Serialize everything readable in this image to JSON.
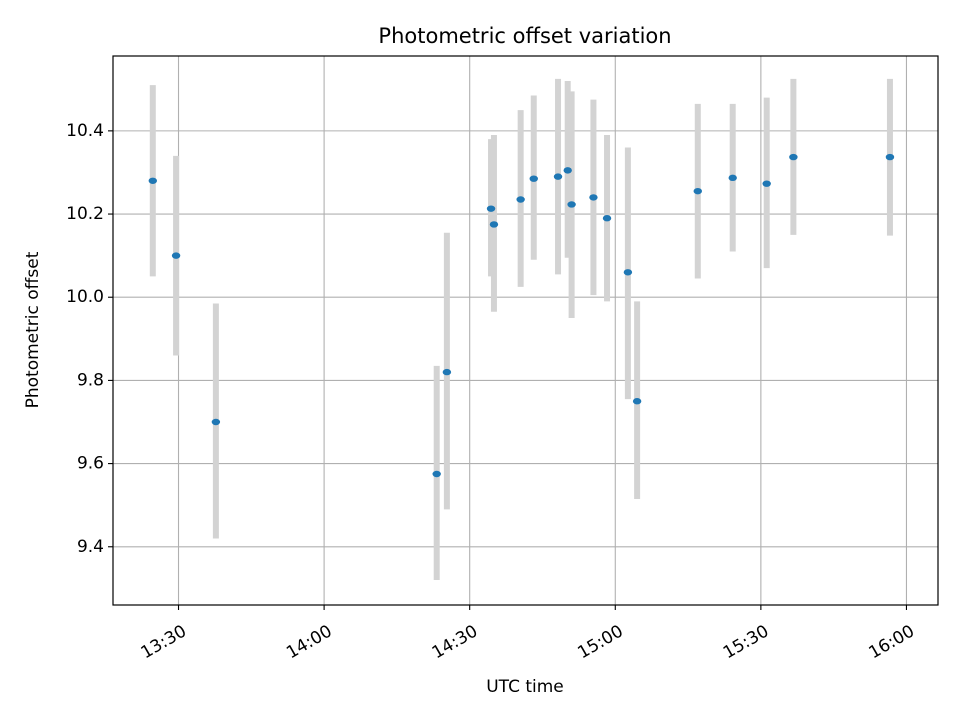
{
  "chart_data": {
    "type": "scatter",
    "title": "Photometric offset variation",
    "xlabel": "UTC time",
    "ylabel": "Photometric offset",
    "x_tick_labels": [
      "13:30",
      "14:00",
      "14:30",
      "15:00",
      "15:30",
      "16:00"
    ],
    "x_tick_minutes": [
      810,
      840,
      870,
      900,
      930,
      960
    ],
    "xlim_minutes": [
      796.5,
      966.5
    ],
    "y_tick_labels": [
      "9.4",
      "9.6",
      "9.8",
      "10.0",
      "10.2",
      "10.4"
    ],
    "y_ticks": [
      9.4,
      9.6,
      9.8,
      10.0,
      10.2,
      10.4
    ],
    "ylim": [
      9.26,
      10.58
    ],
    "grid": true,
    "colors": {
      "point": "#1f77b4",
      "errorbar": "#d3d3d3",
      "grid": "#b0b0b0"
    },
    "points": [
      {
        "time": "13:24.7",
        "y": 10.28,
        "ylo": 10.05,
        "yhi": 10.51
      },
      {
        "time": "13:29.5",
        "y": 10.1,
        "ylo": 9.86,
        "yhi": 10.34
      },
      {
        "time": "13:37.7",
        "y": 9.7,
        "ylo": 9.42,
        "yhi": 9.985
      },
      {
        "time": "14:23.2",
        "y": 9.575,
        "ylo": 9.32,
        "yhi": 9.835
      },
      {
        "time": "14:25.3",
        "y": 9.82,
        "ylo": 9.49,
        "yhi": 10.155
      },
      {
        "time": "14:34.4",
        "y": 10.213,
        "ylo": 10.05,
        "yhi": 10.38
      },
      {
        "time": "14:35.0",
        "y": 10.175,
        "ylo": 9.965,
        "yhi": 10.39
      },
      {
        "time": "14:40.5",
        "y": 10.235,
        "ylo": 10.025,
        "yhi": 10.45
      },
      {
        "time": "14:43.2",
        "y": 10.285,
        "ylo": 10.09,
        "yhi": 10.485
      },
      {
        "time": "14:48.2",
        "y": 10.29,
        "ylo": 10.055,
        "yhi": 10.525
      },
      {
        "time": "14:50.2",
        "y": 10.305,
        "ylo": 10.095,
        "yhi": 10.52
      },
      {
        "time": "14:51.0",
        "y": 10.223,
        "ylo": 9.95,
        "yhi": 10.495
      },
      {
        "time": "14:55.5",
        "y": 10.24,
        "ylo": 10.005,
        "yhi": 10.475
      },
      {
        "time": "14:58.3",
        "y": 10.19,
        "ylo": 9.99,
        "yhi": 10.39
      },
      {
        "time": "15:02.6",
        "y": 10.06,
        "ylo": 9.755,
        "yhi": 10.36
      },
      {
        "time": "15:04.5",
        "y": 9.75,
        "ylo": 9.515,
        "yhi": 9.99
      },
      {
        "time": "15:17.0",
        "y": 10.255,
        "ylo": 10.045,
        "yhi": 10.465
      },
      {
        "time": "15:24.2",
        "y": 10.287,
        "ylo": 10.11,
        "yhi": 10.465
      },
      {
        "time": "15:31.2",
        "y": 10.273,
        "ylo": 10.07,
        "yhi": 10.48
      },
      {
        "time": "15:36.7",
        "y": 10.337,
        "ylo": 10.15,
        "yhi": 10.525
      },
      {
        "time": "15:56.6",
        "y": 10.337,
        "ylo": 10.148,
        "yhi": 10.525
      }
    ]
  }
}
